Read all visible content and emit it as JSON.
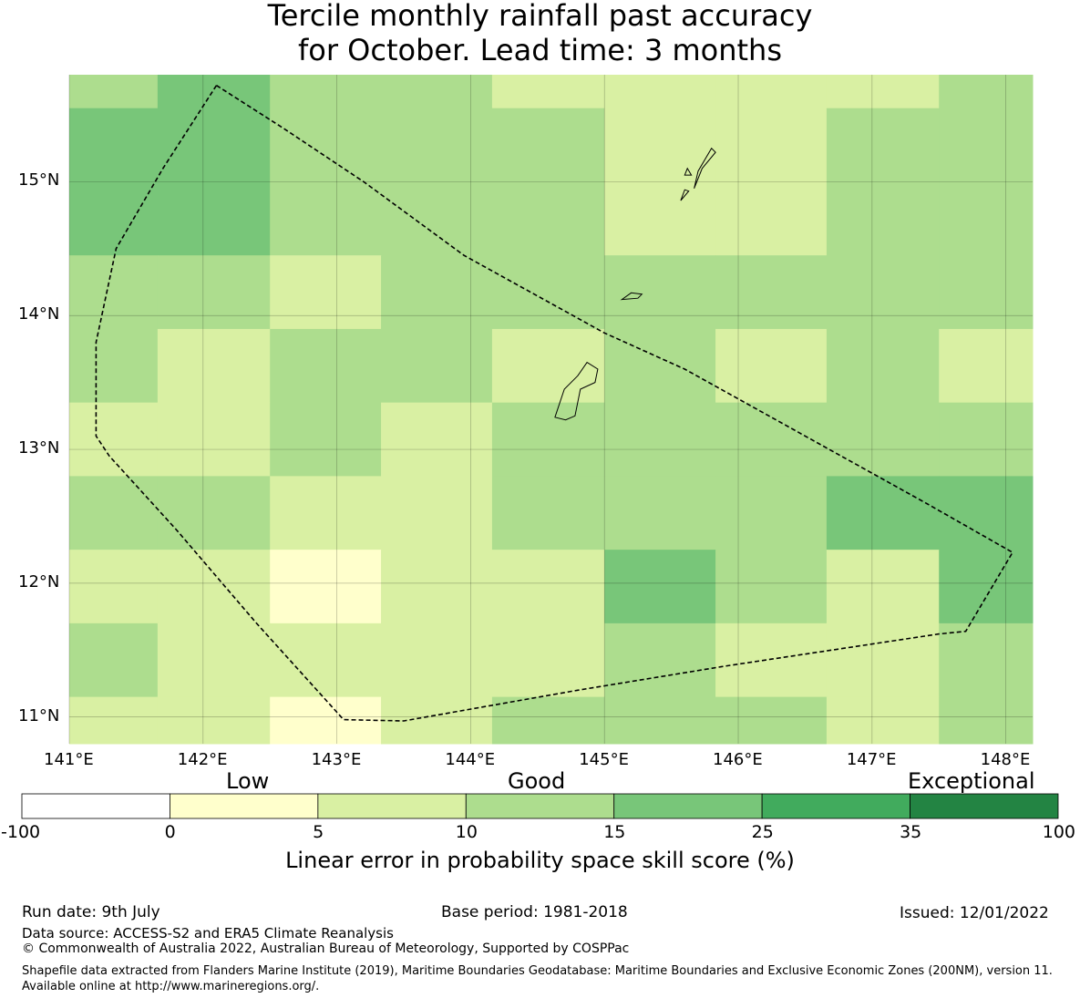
{
  "title": {
    "line1": "Tercile monthly rainfall past accuracy",
    "line2": "for October. Lead time: 3 months"
  },
  "map": {
    "lon_range": [
      141.0,
      148.2
    ],
    "lat_range": [
      10.8,
      15.8
    ],
    "lon_labels": [
      "141°E",
      "142°E",
      "143°E",
      "144°E",
      "145°E",
      "146°E",
      "147°E",
      "148°E"
    ],
    "lat_labels": [
      "15°N",
      "14°N",
      "13°N",
      "12°N",
      "11°N"
    ],
    "grid": true,
    "cell_lon_edges": [
      141.0,
      141.66,
      142.5,
      143.33,
      144.16,
      145.0,
      145.83,
      146.66,
      147.5,
      148.2
    ],
    "cell_lat_edges": [
      15.8,
      15.55,
      14.45,
      13.9,
      13.35,
      12.8,
      12.25,
      11.7,
      11.15,
      10.8
    ],
    "cell_scores": [
      [
        10,
        15,
        10,
        10,
        5,
        5,
        5,
        5,
        10
      ],
      [
        15,
        15,
        10,
        10,
        10,
        5,
        5,
        10,
        10
      ],
      [
        10,
        10,
        5,
        10,
        10,
        10,
        10,
        10,
        10
      ],
      [
        10,
        5,
        10,
        10,
        5,
        10,
        5,
        10,
        5
      ],
      [
        5,
        5,
        10,
        5,
        10,
        10,
        10,
        10,
        10
      ],
      [
        10,
        10,
        5,
        5,
        10,
        10,
        10,
        15,
        15
      ],
      [
        5,
        5,
        0,
        5,
        5,
        15,
        10,
        5,
        15
      ],
      [
        10,
        5,
        5,
        5,
        5,
        10,
        5,
        5,
        10
      ],
      [
        5,
        5,
        0,
        5,
        10,
        10,
        10,
        5,
        10
      ]
    ],
    "eez_boundary": [
      [
        142.1,
        15.72
      ],
      [
        142.6,
        15.4
      ],
      [
        143.2,
        15.0
      ],
      [
        143.95,
        14.45
      ],
      [
        145.0,
        13.87
      ],
      [
        145.6,
        13.6
      ],
      [
        146.5,
        13.1
      ],
      [
        147.4,
        12.6
      ],
      [
        148.05,
        12.23
      ],
      [
        147.7,
        11.64
      ],
      [
        147.5,
        11.62
      ],
      [
        145.9,
        11.38
      ],
      [
        144.8,
        11.2
      ],
      [
        143.5,
        10.97
      ],
      [
        143.05,
        10.98
      ],
      [
        142.4,
        11.7
      ],
      [
        141.8,
        12.4
      ],
      [
        141.3,
        12.95
      ],
      [
        141.2,
        13.1
      ],
      [
        141.2,
        13.8
      ],
      [
        141.35,
        14.5
      ],
      [
        141.7,
        15.1
      ],
      [
        142.1,
        15.72
      ]
    ],
    "islands": [
      {
        "name": "Guam",
        "points": [
          [
            144.63,
            13.24
          ],
          [
            144.7,
            13.45
          ],
          [
            144.8,
            13.55
          ],
          [
            144.87,
            13.65
          ],
          [
            144.95,
            13.6
          ],
          [
            144.93,
            13.5
          ],
          [
            144.82,
            13.45
          ],
          [
            144.78,
            13.25
          ],
          [
            144.71,
            13.22
          ],
          [
            144.63,
            13.24
          ]
        ]
      },
      {
        "name": "Rota",
        "points": [
          [
            145.13,
            14.12
          ],
          [
            145.2,
            14.17
          ],
          [
            145.28,
            14.16
          ],
          [
            145.25,
            14.13
          ],
          [
            145.13,
            14.12
          ]
        ]
      },
      {
        "name": "Tinian",
        "points": [
          [
            145.57,
            14.86
          ],
          [
            145.6,
            14.94
          ],
          [
            145.63,
            14.93
          ],
          [
            145.57,
            14.86
          ]
        ]
      },
      {
        "name": "Saipan",
        "points": [
          [
            145.67,
            14.95
          ],
          [
            145.7,
            15.08
          ],
          [
            145.8,
            15.25
          ],
          [
            145.83,
            15.22
          ],
          [
            145.73,
            15.1
          ],
          [
            145.67,
            14.95
          ]
        ]
      },
      {
        "name": "Saipan islet",
        "points": [
          [
            145.6,
            15.05
          ],
          [
            145.62,
            15.1
          ],
          [
            145.65,
            15.05
          ],
          [
            145.6,
            15.05
          ]
        ]
      }
    ]
  },
  "legend": {
    "categories": [
      "Low",
      "Good",
      "Exceptional"
    ],
    "ticks": [
      "-100",
      "0",
      "5",
      "10",
      "15",
      "25",
      "35",
      "100"
    ],
    "colors": [
      "#ffffff",
      "#ffffcc",
      "#d9f0a3",
      "#addd8e",
      "#78c679",
      "#41ab5d",
      "#238443"
    ],
    "xlabel": "Linear error in probability space skill score (%)"
  },
  "footer": {
    "run_date": "Run date: 9th July",
    "base_period": "Base period: 1981-2018",
    "issued": "Issued: 12/01/2022",
    "data_source": "Data source: ACCESS-S2 and ERA5 Climate Reanalysis",
    "copyright": "© Commonwealth of Australia 2022, Australian Bureau of Meteorology, Supported by COSPPac",
    "shapefile": "Shapefile data extracted from Flanders Marine Institute (2019), Maritime Boundaries Geodatabase: Maritime Boundaries and Exclusive Economic Zones (200NM), version 11. Available online at http://www.marineregions.org/."
  }
}
